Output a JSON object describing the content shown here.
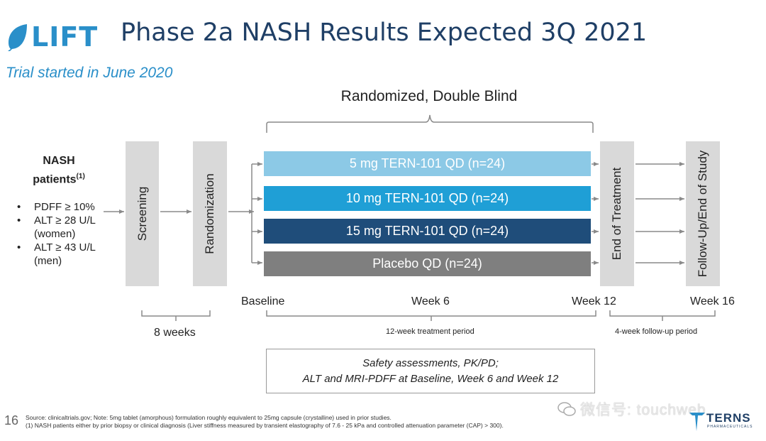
{
  "header": {
    "logo_text": "LIFT",
    "title": "Phase 2a NASH Results Expected 3Q 2021",
    "subtitle": "Trial started in June 2020"
  },
  "design": {
    "randomized_label": "Randomized, Double Blind",
    "population": {
      "title": "NASH",
      "title2": "patients",
      "footnote_mark": "(1)",
      "criteria": [
        "PDFF ≥ 10%",
        "ALT ≥ 28 U/L (women)",
        "ALT ≥ 43 U/L (men)"
      ]
    },
    "stages": {
      "screening": "Screening",
      "randomization": "Randomization",
      "end_of_treatment": "End of Treatment",
      "follow_up": "Follow-Up/End of Study"
    },
    "arms": [
      {
        "label": "5 mg TERN-101 QD (n=24)",
        "color": "#8cc9e6"
      },
      {
        "label": "10 mg TERN-101 QD (n=24)",
        "color": "#1f9fd6"
      },
      {
        "label": "15 mg TERN-101 QD (n=24)",
        "color": "#1f4d7a"
      },
      {
        "label": "Placebo QD (n=24)",
        "color": "#7f7f7f"
      }
    ],
    "timepoints": {
      "baseline": "Baseline",
      "week6": "Week 6",
      "week12": "Week 12",
      "week16": "Week 16"
    },
    "periods": {
      "screening_duration": "8 weeks",
      "treatment": "12-week treatment period",
      "follow_up": "4-week follow-up period"
    },
    "safety": {
      "line1": "Safety assessments, PK/PD;",
      "line2": "ALT and MRI-PDFF at Baseline, Week 6 and Week 12"
    }
  },
  "footer": {
    "page_number": "16",
    "source": "Source: clinicaltrials.gov; Note:  5mg tablet (amorphous) formulation roughly equivalent to 25mg capsule (crystalline) used in prior studies.",
    "note1": "(1) NASH patients either by prior biopsy or clinical diagnosis (Liver stiffness measured by transient elastography of 7.6 - 25 kPa and controlled attenuation parameter (CAP) > 300).",
    "watermark": "微信号: touchweb",
    "company_logo": "TERNS",
    "company_sub": "PHARMACEUTICALS"
  }
}
